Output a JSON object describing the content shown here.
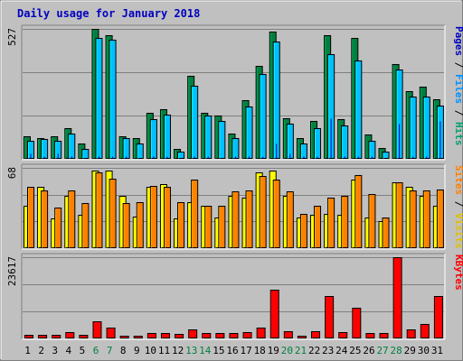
{
  "chart_data": {
    "type": "bar",
    "title": "Daily usage for January 2018",
    "categories": [
      "1",
      "2",
      "3",
      "4",
      "5",
      "6",
      "7",
      "8",
      "9",
      "10",
      "11",
      "12",
      "13",
      "14",
      "15",
      "16",
      "17",
      "18",
      "19",
      "20",
      "21",
      "22",
      "23",
      "24",
      "25",
      "26",
      "27",
      "28",
      "29",
      "30",
      "31"
    ],
    "weekend_days": [
      "6",
      "7",
      "13",
      "14",
      "20",
      "21",
      "27",
      "28"
    ],
    "panels": [
      {
        "id": "top",
        "ymax_label": "527",
        "ymax": 527,
        "axis_label_parts": [
          "Pages",
          "Files",
          "Hits"
        ],
        "series": [
          {
            "name": "Hits",
            "color": "#008040",
            "values": [
              93,
              83,
              93,
              125,
              62,
              527,
              503,
              93,
              83,
              186,
              202,
              41,
              335,
              186,
              176,
              104,
              238,
              378,
              517,
              165,
              83,
              155,
              501,
              160,
              492,
              100,
              45,
              384,
              273,
              293,
              243
            ]
          },
          {
            "name": "Files",
            "color": "#00c0ff",
            "values": [
              72,
              80,
              72,
              103,
              41,
              489,
              482,
              83,
              62,
              160,
              181,
              31,
              296,
              176,
              155,
              83,
              212,
              343,
              476,
              144,
              62,
              124,
              425,
              134,
              399,
              72,
              31,
              362,
              252,
              252,
              217
            ]
          },
          {
            "name": "Pages",
            "color": "#0000c0",
            "values": [
              21,
              10,
              21,
              10,
              5,
              10,
              10,
              10,
              5,
              10,
              10,
              5,
              10,
              10,
              5,
              10,
              10,
              10,
              62,
              21,
              10,
              10,
              165,
              10,
              10,
              10,
              5,
              144,
              10,
              10,
              155
            ]
          }
        ]
      },
      {
        "id": "middle",
        "ymax_label": "68",
        "ymax": 68,
        "axis_label_parts": [
          "Sites",
          "Visits"
        ],
        "series": [
          {
            "name": "Visits",
            "color": "#ffff00",
            "values": [
              36,
              52,
              25,
              44,
              28,
              66,
              66,
              44,
              27,
              52,
              54,
              25,
              39,
              36,
              26,
              44,
              43,
              64,
              66,
              44,
              26,
              28,
              29,
              28,
              58,
              26,
              23,
              56,
              52,
              44,
              36
            ]
          },
          {
            "name": "Sites",
            "color": "#ff8000",
            "values": [
              52,
              49,
              34,
              49,
              38,
              64,
              59,
              38,
              39,
              53,
              52,
              39,
              58,
              36,
              36,
              48,
              49,
              61,
              58,
              48,
              29,
              36,
              43,
              44,
              62,
              46,
              26,
              56,
              49,
              49,
              50
            ]
          }
        ]
      },
      {
        "id": "bottom",
        "ymax_label": "23617",
        "ymax": 23617,
        "axis_label_parts": [
          "KBytes"
        ],
        "series": [
          {
            "name": "KBytes",
            "color": "#ff0000",
            "values": [
              950,
              950,
              1100,
              1850,
              1000,
              5000,
              3250,
              750,
              900,
              1500,
              1500,
              1300,
              2500,
              1500,
              1500,
              1500,
              1850,
              3100,
              14200,
              2150,
              750,
              2150,
              12300,
              1850,
              9000,
              1500,
              1500,
              23617,
              2500,
              4250,
              12300
            ]
          }
        ]
      }
    ],
    "grid": true
  }
}
